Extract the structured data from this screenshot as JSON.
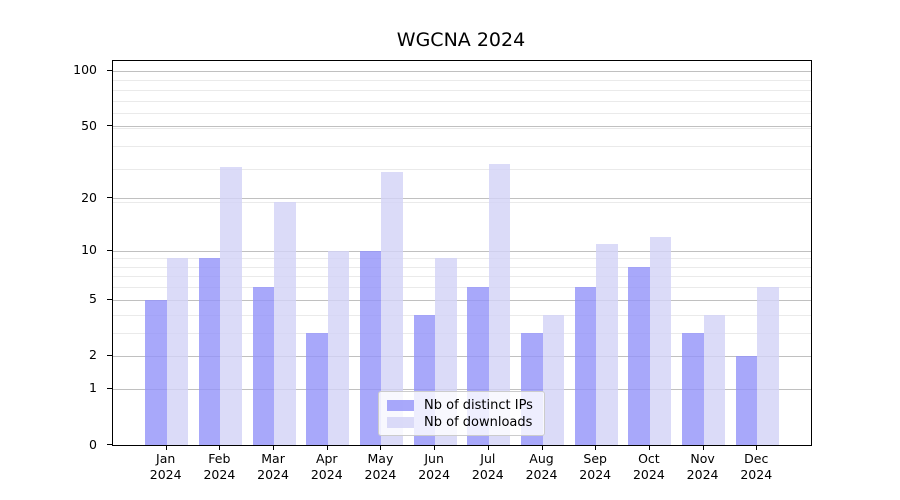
{
  "chart_data": {
    "type": "bar",
    "title": "WGCNA 2024",
    "categories": [
      "Jan",
      "Feb",
      "Mar",
      "Apr",
      "May",
      "Jun",
      "Jul",
      "Aug",
      "Sep",
      "Oct",
      "Nov",
      "Dec"
    ],
    "x_tick_second_line": "2024",
    "series": [
      {
        "name": "Nb of distinct IPs",
        "color": "#9292f9",
        "values": [
          5,
          9,
          6,
          3,
          10,
          4,
          6,
          3,
          6,
          8,
          3,
          2
        ]
      },
      {
        "name": "Nb of downloads",
        "color": "#d2d2f6",
        "values": [
          9,
          30,
          19,
          10,
          28,
          9,
          31,
          4,
          11,
          12,
          4,
          6
        ]
      }
    ],
    "y_scale": "log10(value+1)",
    "y_ticks": [
      0,
      1,
      2,
      5,
      10,
      20,
      50,
      100
    ],
    "y_minor_ticks": [
      3,
      4,
      6,
      7,
      8,
      9,
      19,
      29,
      39,
      49,
      59,
      69,
      79,
      89
    ],
    "ylim": [
      0,
      113
    ],
    "xlabel": "",
    "ylabel": "",
    "grid": "on",
    "legend_position": "lower center"
  },
  "style": {
    "bar_opacity": 0.8,
    "major_grid_color": "#c0c0c0",
    "minor_grid_color": "#eaeaea",
    "axis_color": "#000000",
    "background_color": "#ffffff"
  }
}
